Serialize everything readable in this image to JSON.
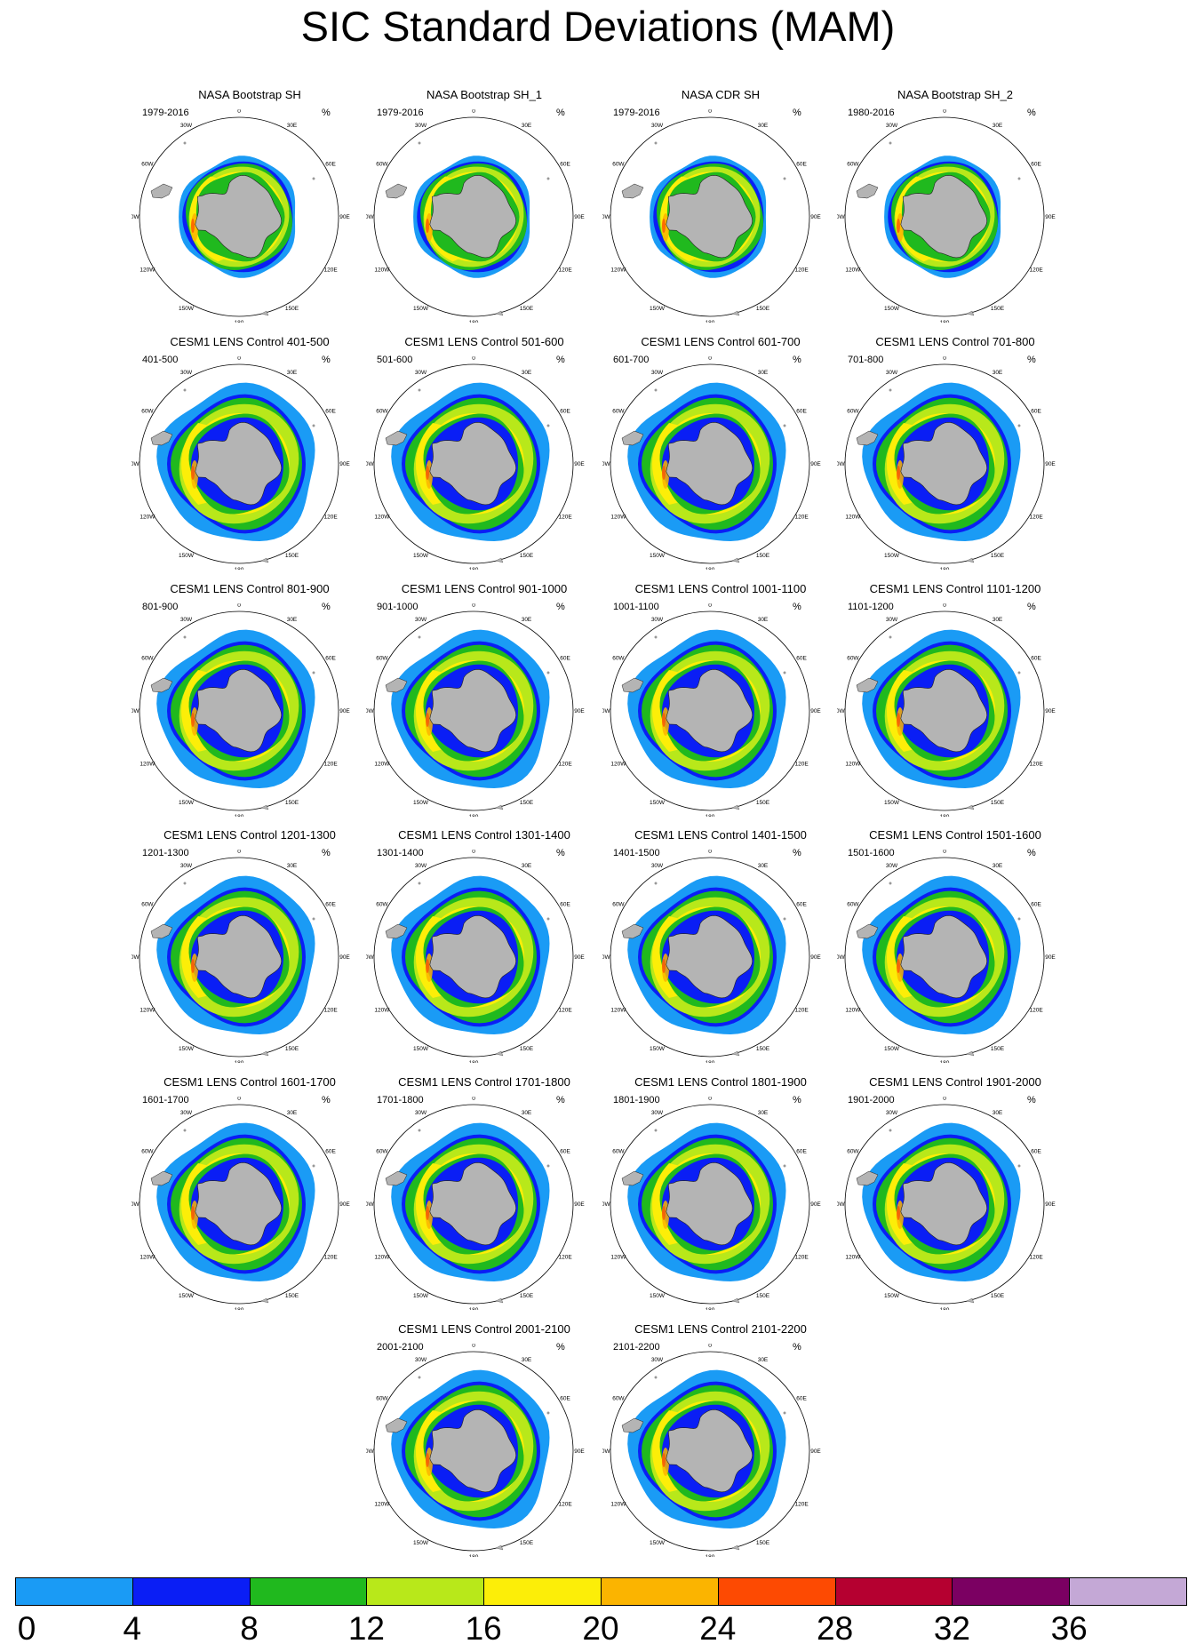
{
  "title": "SIC Standard Deviations (MAM)",
  "longitude_labels": [
    "0",
    "30E",
    "60E",
    "90E",
    "120E",
    "150E",
    "180",
    "150W",
    "120W",
    "90W",
    "60W",
    "30W"
  ],
  "panels": [
    {
      "title": "NASA Bootstrap SH",
      "period": "1979-2016",
      "units": "%",
      "style": "obs"
    },
    {
      "title": "NASA Bootstrap SH_1",
      "period": "1979-2016",
      "units": "%",
      "style": "obs"
    },
    {
      "title": "NASA CDR SH",
      "period": "1979-2016",
      "units": "%",
      "style": "obs"
    },
    {
      "title": "NASA Bootstrap SH_2",
      "period": "1980-2016",
      "units": "%",
      "style": "obs"
    },
    {
      "title": "CESM1 LENS Control 401-500",
      "period": "401-500",
      "units": "%",
      "style": "model"
    },
    {
      "title": "CESM1 LENS Control 501-600",
      "period": "501-600",
      "units": "%",
      "style": "model"
    },
    {
      "title": "CESM1 LENS Control 601-700",
      "period": "601-700",
      "units": "%",
      "style": "model"
    },
    {
      "title": "CESM1 LENS Control 701-800",
      "period": "701-800",
      "units": "%",
      "style": "model"
    },
    {
      "title": "CESM1 LENS Control 801-900",
      "period": "801-900",
      "units": "%",
      "style": "model"
    },
    {
      "title": "CESM1 LENS Control 901-1000",
      "period": "901-1000",
      "units": "%",
      "style": "model"
    },
    {
      "title": "CESM1 LENS Control 1001-1100",
      "period": "1001-1100",
      "units": "%",
      "style": "model"
    },
    {
      "title": "CESM1 LENS Control 1101-1200",
      "period": "1101-1200",
      "units": "%",
      "style": "model"
    },
    {
      "title": "CESM1 LENS Control 1201-1300",
      "period": "1201-1300",
      "units": "%",
      "style": "model"
    },
    {
      "title": "CESM1 LENS Control 1301-1400",
      "period": "1301-1400",
      "units": "%",
      "style": "model"
    },
    {
      "title": "CESM1 LENS Control 1401-1500",
      "period": "1401-1500",
      "units": "%",
      "style": "model"
    },
    {
      "title": "CESM1 LENS Control 1501-1600",
      "period": "1501-1600",
      "units": "%",
      "style": "model"
    },
    {
      "title": "CESM1 LENS Control 1601-1700",
      "period": "1601-1700",
      "units": "%",
      "style": "model"
    },
    {
      "title": "CESM1 LENS Control 1701-1800",
      "period": "1701-1800",
      "units": "%",
      "style": "model"
    },
    {
      "title": "CESM1 LENS Control 1801-1900",
      "period": "1801-1900",
      "units": "%",
      "style": "model"
    },
    {
      "title": "CESM1 LENS Control 1901-2000",
      "period": "1901-2000",
      "units": "%",
      "style": "model"
    },
    {
      "title": "CESM1 LENS Control 2001-2100",
      "period": "2001-2100",
      "units": "%",
      "style": "model"
    },
    {
      "title": "CESM1 LENS Control 2101-2200",
      "period": "2101-2200",
      "units": "%",
      "style": "model"
    }
  ],
  "colorbar": {
    "labels": [
      "0",
      "4",
      "8",
      "12",
      "16",
      "20",
      "24",
      "28",
      "32",
      "36"
    ],
    "colors": [
      "#1a9bf5",
      "#0a1ef5",
      "#20b91e",
      "#b8e81a",
      "#fcee08",
      "#fbb400",
      "#fd4a02",
      "#b50030",
      "#7b0062",
      "#c4a8d6"
    ]
  }
}
